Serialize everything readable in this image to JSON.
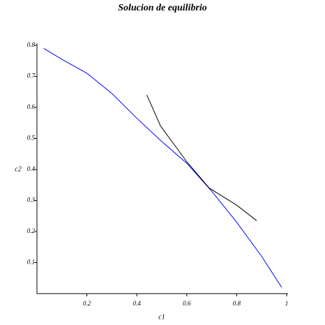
{
  "chart_data": {
    "type": "line",
    "title": "Solucion de equilibrio",
    "x_label": "c1",
    "y_label": "c2",
    "xlim": [
      0,
      1
    ],
    "ylim": [
      0,
      0.8
    ],
    "xticks": [
      0.2,
      0.4,
      0.6,
      0.8,
      1
    ],
    "yticks": [
      0.1,
      0.2,
      0.3,
      0.4,
      0.5,
      0.6,
      0.7,
      0.8
    ],
    "series": [
      {
        "color": "#0000ff",
        "x": [
          0.027,
          0.1,
          0.2,
          0.3,
          0.4,
          0.5,
          0.6,
          0.7,
          0.8,
          0.9,
          0.98
        ],
        "values": [
          0.79,
          0.755,
          0.71,
          0.645,
          0.565,
          0.49,
          0.42,
          0.33,
          0.23,
          0.12,
          0.02
        ]
      },
      {
        "color": "#000000",
        "x": [
          0.44,
          0.495,
          0.6,
          0.69,
          0.8,
          0.88
        ],
        "values": [
          0.64,
          0.54,
          0.425,
          0.34,
          0.285,
          0.235
        ]
      }
    ]
  }
}
